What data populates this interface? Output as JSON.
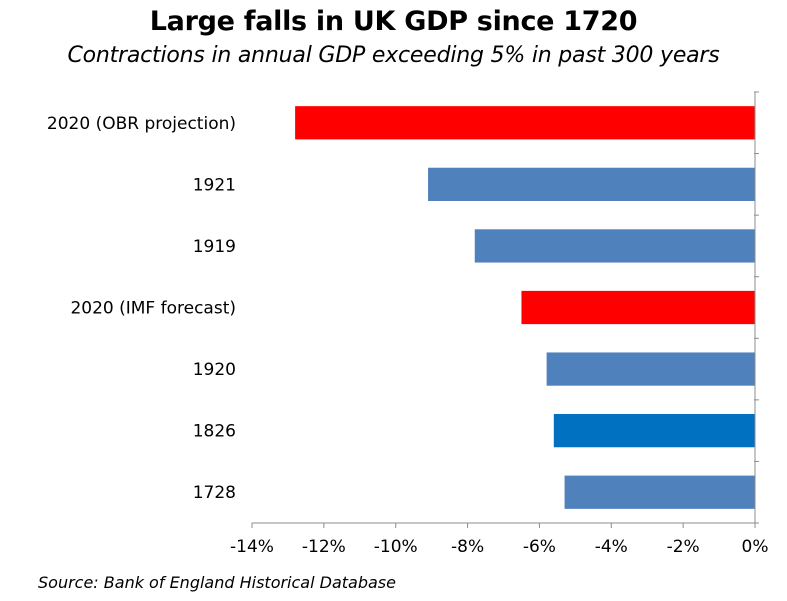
{
  "title": "Large falls in UK GDP since 1720",
  "subtitle": "Contractions in annual GDP exceeding 5% in past 300 years",
  "source": "Source: Bank of England Historical Database",
  "chart_data": {
    "type": "bar",
    "orientation": "horizontal",
    "title": "Large falls in UK GDP since 1720",
    "subtitle": "Contractions in annual GDP exceeding 5% in past 300 years",
    "xlabel": "",
    "ylabel": "",
    "categories": [
      "2020 (OBR projection)",
      "1921",
      "1919",
      "2020 (IMF forecast)",
      "1920",
      "1826",
      "1728"
    ],
    "values": [
      -12.8,
      -9.1,
      -7.8,
      -6.5,
      -5.8,
      -5.6,
      -5.3
    ],
    "bar_colors": [
      "#ff0000",
      "#4f81bd",
      "#4f81bd",
      "#ff0000",
      "#4f81bd",
      "#0070c0",
      "#4f81bd"
    ],
    "xlim": [
      -14,
      0
    ],
    "x_ticks": [
      -14,
      -12,
      -10,
      -8,
      -6,
      -4,
      -2,
      0
    ],
    "x_tick_labels": [
      "-14%",
      "-12%",
      "-10%",
      "-8%",
      "-6%",
      "-4%",
      "-2%",
      "0%"
    ],
    "grid": false,
    "legend": "none"
  }
}
